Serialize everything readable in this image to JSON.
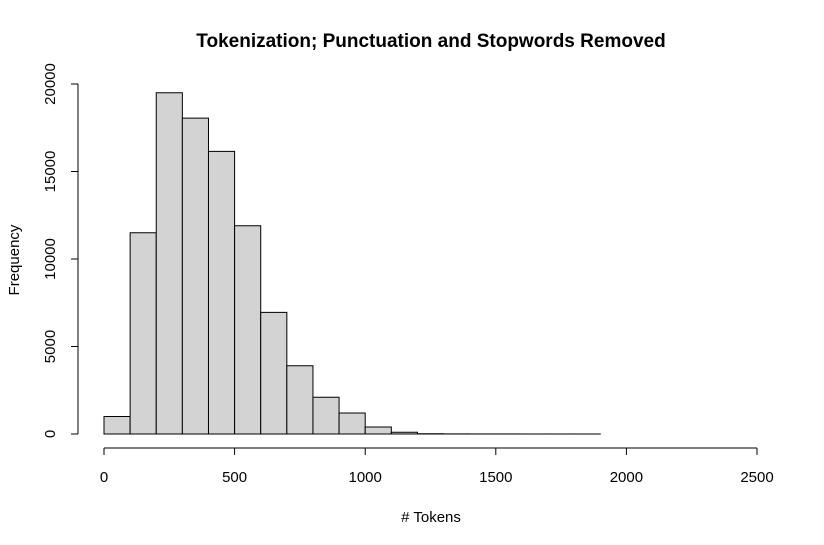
{
  "chart_data": {
    "type": "bar",
    "title": "Tokenization; Punctuation and Stopwords Removed",
    "xlabel": "# Tokens",
    "ylabel": "Frequency",
    "xlim": [
      0,
      2500
    ],
    "ylim": [
      0,
      20000
    ],
    "x_ticks": [
      "0",
      "500",
      "1000",
      "1500",
      "2000",
      "2500"
    ],
    "y_ticks": [
      "0",
      "5000",
      "10000",
      "15000",
      "20000"
    ],
    "bin_width": 100,
    "bins": [
      {
        "start": 0,
        "end": 100,
        "value": 1000
      },
      {
        "start": 100,
        "end": 200,
        "value": 11500
      },
      {
        "start": 200,
        "end": 300,
        "value": 19500
      },
      {
        "start": 300,
        "end": 400,
        "value": 18050
      },
      {
        "start": 400,
        "end": 500,
        "value": 16150
      },
      {
        "start": 500,
        "end": 600,
        "value": 11900
      },
      {
        "start": 600,
        "end": 700,
        "value": 6950
      },
      {
        "start": 700,
        "end": 800,
        "value": 3900
      },
      {
        "start": 800,
        "end": 900,
        "value": 2100
      },
      {
        "start": 900,
        "end": 1000,
        "value": 1200
      },
      {
        "start": 1000,
        "end": 1100,
        "value": 400
      },
      {
        "start": 1100,
        "end": 1200,
        "value": 100
      },
      {
        "start": 1200,
        "end": 1300,
        "value": 15
      },
      {
        "start": 1300,
        "end": 1400,
        "value": 6
      },
      {
        "start": 1400,
        "end": 1500,
        "value": 3
      },
      {
        "start": 1500,
        "end": 1600,
        "value": 2
      },
      {
        "start": 1600,
        "end": 1700,
        "value": 1
      },
      {
        "start": 1700,
        "end": 1800,
        "value": 1
      },
      {
        "start": 1800,
        "end": 1900,
        "value": 1
      }
    ],
    "bar_fill": "#d3d3d3",
    "bar_stroke": "#000000",
    "grid": false,
    "legend": "none"
  }
}
